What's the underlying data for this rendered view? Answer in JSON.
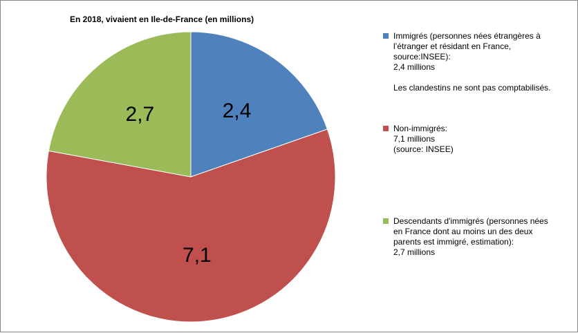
{
  "chart_data": {
    "type": "pie",
    "title": {
      "prefix": "En 2018,  vivaient en ",
      "region": "Ile-de-France",
      "suffix": " (en millions)"
    },
    "slices": [
      {
        "label": "Immigrés",
        "value": 2.4,
        "display": "2,4",
        "color": "#4f81bd"
      },
      {
        "label": "Non-immigrés",
        "value": 7.1,
        "display": "7,1",
        "color": "#c0504d"
      },
      {
        "label": "Descendants d'immigrés",
        "value": 2.7,
        "display": "2,7",
        "color": "#9bbb59"
      }
    ],
    "start_angle": "12 o'clock",
    "direction": "clockwise",
    "legend_position": "right"
  },
  "legend": {
    "immigres": {
      "lines": [
        "Immigrés (personnes nées étrangères à",
        "l’étranger et résidant en France,",
        "source:INSEE):",
        "2,4 millions"
      ],
      "note": "Les clandestins ne sont pas comptabilisés."
    },
    "non_immigres": {
      "lines": [
        "Non-immigrés:",
        "7,1 millions",
        "(source: INSEE)"
      ]
    },
    "descendants": {
      "lines": [
        "Descendants d'immigrés (personnes nées",
        "en France dont au moins un des deux",
        "parents est immigré, estimation):",
        "2,7 millions"
      ]
    }
  }
}
